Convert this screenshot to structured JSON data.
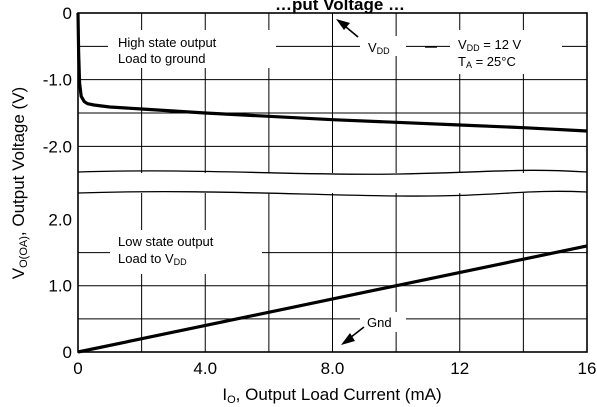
{
  "chart_data": {
    "type": "line",
    "title": "…put Voltage …",
    "xlabel": "I",
    "xlabel_sub": "O",
    "xlabel_rest": ", Output Load Current (mA)",
    "ylabel": "V",
    "ylabel_sub": "O(OA)",
    "ylabel_rest": ", Output Voltage (V)",
    "x_ticks": [
      {
        "value": 0,
        "label": "0"
      },
      {
        "value": 4,
        "label": "4.0"
      },
      {
        "value": 8,
        "label": "8.0"
      },
      {
        "value": 12,
        "label": "12"
      },
      {
        "value": 16,
        "label": "16"
      }
    ],
    "xlim": [
      0,
      16
    ],
    "grid": true,
    "top_panel": {
      "ylim": [
        -2.55,
        0
      ],
      "y_ticks": [
        {
          "value": 0,
          "label": "0"
        },
        {
          "value": -1.0,
          "label": "-1.0"
        },
        {
          "value": -2.0,
          "label": "-2.0"
        }
      ],
      "gridlines": [
        -0.5,
        -1.0,
        -1.5,
        -2.0
      ],
      "series": [
        {
          "x": [
            0,
            0.02,
            0.05,
            0.1,
            0.2,
            0.3,
            0.5,
            1,
            2,
            4,
            6,
            8,
            10,
            12,
            14,
            16
          ],
          "y": [
            0,
            -0.6,
            -1.05,
            -1.25,
            -1.33,
            -1.36,
            -1.38,
            -1.41,
            -1.44,
            -1.5,
            -1.55,
            -1.6,
            -1.64,
            -1.68,
            -1.72,
            -1.77
          ]
        }
      ]
    },
    "bottom_panel": {
      "ylim": [
        0,
        2.55
      ],
      "y_ticks": [
        {
          "value": 0,
          "label": "0"
        },
        {
          "value": 1.0,
          "label": "1.0"
        },
        {
          "value": 2.0,
          "label": "2.0"
        }
      ],
      "gridlines": [
        0.5,
        1.0,
        1.5
      ],
      "series": [
        {
          "x": [
            0,
            16
          ],
          "y": [
            0,
            1.6
          ]
        }
      ]
    },
    "annotations": {
      "high_state_line1": "High state output",
      "high_state_line2": "Load to ground",
      "vdd_main": "V",
      "vdd_sub": "DD",
      "cond_vdd_main": "V",
      "cond_vdd_sub": "DD",
      "cond_vdd_rest": " = 12 V",
      "cond_ta_main": "T",
      "cond_ta_sub": "A",
      "cond_ta_rest": " = 25°C",
      "low_state_line1": "Low state output",
      "low_state_line2_main": "Load to V",
      "low_state_line2_sub": "DD",
      "gnd": "Gnd"
    }
  }
}
